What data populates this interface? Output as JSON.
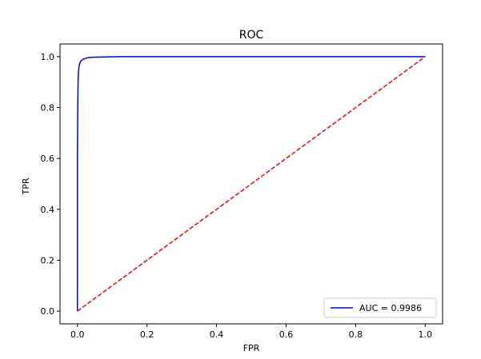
{
  "chart_data": {
    "type": "line",
    "title": "ROC",
    "xlabel": "FPR",
    "ylabel": "TPR",
    "xlim": [
      -0.05,
      1.05
    ],
    "ylim": [
      -0.05,
      1.05
    ],
    "xticks": [
      "0.0",
      "0.2",
      "0.4",
      "0.6",
      "0.8",
      "1.0"
    ],
    "yticks": [
      "0.0",
      "0.2",
      "0.4",
      "0.6",
      "0.8",
      "1.0"
    ],
    "xtick_values": [
      0,
      0.2,
      0.4,
      0.6,
      0.8,
      1.0
    ],
    "ytick_values": [
      0,
      0.2,
      0.4,
      0.6,
      0.8,
      1.0
    ],
    "grid": false,
    "legend_position": "lower right",
    "series": [
      {
        "name": "AUC = 0.9986",
        "color": "#0000ff",
        "style": "solid",
        "x": [
          0,
          0,
          0.001,
          0.002,
          0.003,
          0.005,
          0.008,
          0.012,
          0.02,
          0.03,
          0.05,
          0.08,
          0.12,
          0.2,
          0.4,
          0.6,
          0.8,
          1.0
        ],
        "y": [
          0,
          0.6,
          0.8,
          0.9,
          0.94,
          0.965,
          0.978,
          0.986,
          0.992,
          0.996,
          0.998,
          0.999,
          1.0,
          1.0,
          1.0,
          1.0,
          1.0,
          1.0
        ]
      },
      {
        "name": "",
        "color": "#ff0000",
        "style": "dashed",
        "x": [
          0,
          1
        ],
        "y": [
          0,
          1
        ]
      }
    ]
  }
}
